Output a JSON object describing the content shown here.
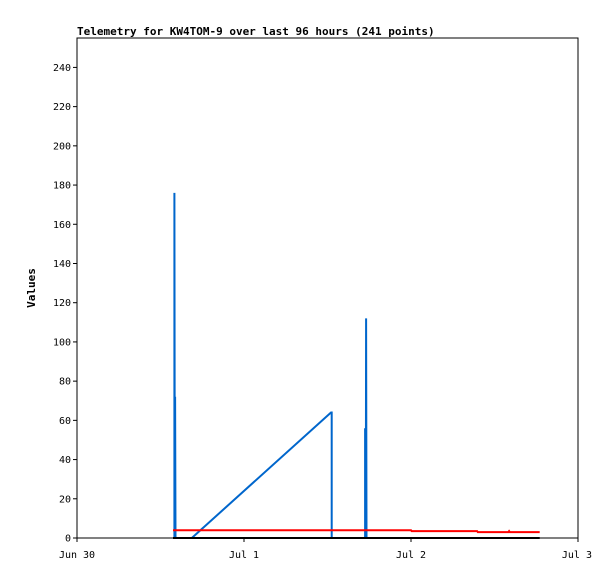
{
  "chart_data": {
    "type": "line",
    "title": "Telemetry for KW4TOM-9 over last 96 hours (241 points)",
    "xlabel": "",
    "ylabel": "Values",
    "ylim": [
      0,
      255
    ],
    "yticks": [
      0,
      20,
      40,
      60,
      80,
      100,
      120,
      140,
      160,
      180,
      200,
      220,
      240
    ],
    "xlim": [
      0,
      72
    ],
    "xticks": [
      {
        "x": 0,
        "label": "Jun 30"
      },
      {
        "x": 24,
        "label": "Jul 1"
      },
      {
        "x": 48,
        "label": "Jul 2"
      },
      {
        "x": 72,
        "label": "Jul 3"
      }
    ],
    "grid": false,
    "series": [
      {
        "color": "#0066cc",
        "points": [
          [
            14.0,
            0
          ],
          [
            14.0,
            176
          ],
          [
            14.05,
            0
          ],
          [
            14.1,
            72
          ],
          [
            14.15,
            0
          ],
          [
            16.5,
            0
          ],
          [
            36.5,
            64
          ],
          [
            36.6,
            64
          ],
          [
            36.6,
            0
          ],
          [
            41.4,
            0
          ],
          [
            41.4,
            56
          ],
          [
            41.5,
            0
          ],
          [
            41.55,
            112
          ],
          [
            41.6,
            0
          ]
        ]
      },
      {
        "color": "#ff0000",
        "points": [
          [
            13.8,
            4
          ],
          [
            48,
            4
          ],
          [
            48.1,
            3.5
          ],
          [
            57.5,
            3.5
          ],
          [
            57.6,
            3
          ],
          [
            62.0,
            3
          ],
          [
            62.1,
            3.5
          ],
          [
            62.2,
            3
          ],
          [
            66.5,
            3
          ]
        ]
      },
      {
        "color": "#000000",
        "points": [
          [
            13.8,
            0
          ],
          [
            66.5,
            0
          ]
        ]
      }
    ]
  }
}
